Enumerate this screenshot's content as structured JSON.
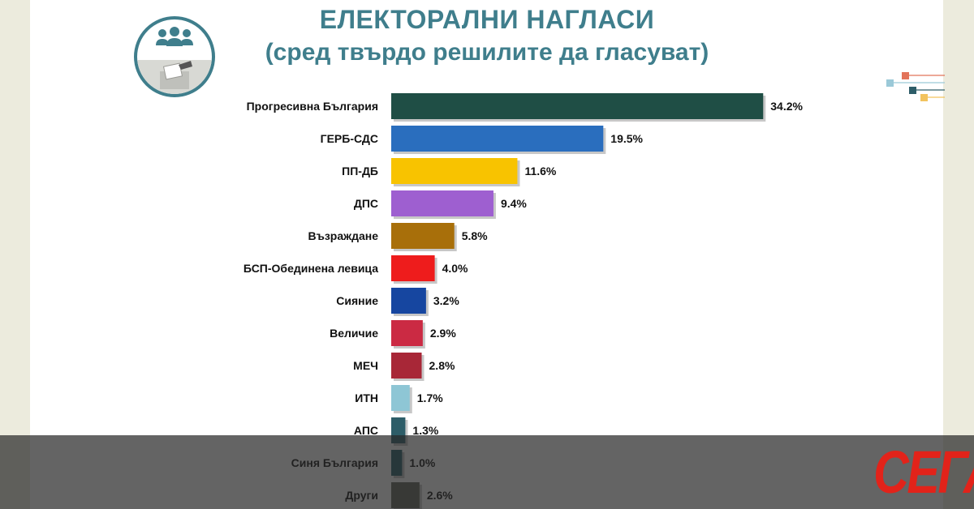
{
  "title": {
    "line1": "ЕЛЕКТОРАЛНИ НАГЛАСИ",
    "line2": "(сред твърдо решилите да гласуват)"
  },
  "logo_text": "СЕГА",
  "colors": {
    "title": "#3f7e8c",
    "background": "#ecebdd",
    "logo": "#e2231a"
  },
  "icons": [
    "people-group-icon",
    "ballot-box-icon"
  ],
  "chart_data": {
    "type": "bar",
    "orientation": "horizontal",
    "title": "ЕЛЕКТОРАЛНИ НАГЛАСИ (сред твърдо решилите да гласуват)",
    "xlabel": "",
    "ylabel": "",
    "unit": "%",
    "xlim": [
      0,
      40
    ],
    "grid": false,
    "categories": [
      "Прогресивна България",
      "ГЕРБ-СДС",
      "ПП-ДБ",
      "ДПС",
      "Възраждане",
      "БСП-Обединена левица",
      "Сияние",
      "Величие",
      "МЕЧ",
      "ИТН",
      "АПС",
      "Синя България",
      "Други"
    ],
    "values": [
      34.2,
      19.5,
      11.6,
      9.4,
      5.8,
      4.0,
      3.2,
      2.9,
      2.8,
      1.7,
      1.3,
      1.0,
      2.6
    ],
    "value_labels": [
      "34.2%",
      "19.5%",
      "11.6%",
      "9.4%",
      "5.8%",
      "4.0%",
      "3.2%",
      "2.9%",
      "2.8%",
      "1.7%",
      "1.3%",
      "1.0%",
      "2.6%"
    ],
    "bar_colors": [
      "#1f4e45",
      "#2a6ebe",
      "#f8c300",
      "#9e5fd0",
      "#a86f0a",
      "#ee1c1c",
      "#1646a0",
      "#cb2a43",
      "#a82737",
      "#8ec6d5",
      "#2d5d68",
      "#255e6a",
      "#63665a"
    ]
  }
}
